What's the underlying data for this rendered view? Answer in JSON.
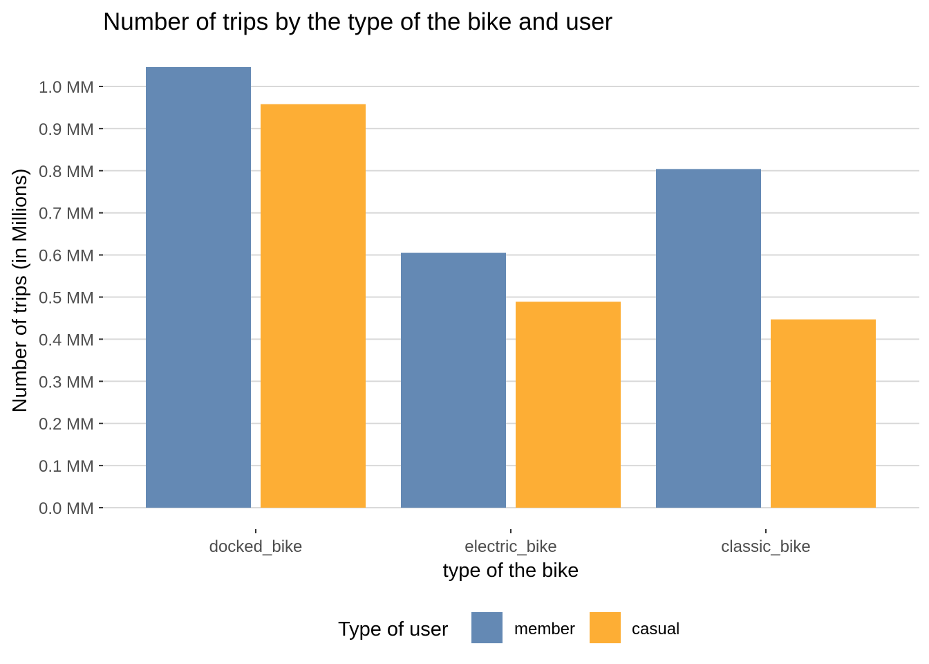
{
  "chart_data": {
    "type": "bar",
    "title": "Number of trips by the type of the bike and user",
    "xlabel": "type of the bike",
    "ylabel": "Number of trips (in Millions)",
    "categories": [
      "docked_bike",
      "electric_bike",
      "classic_bike"
    ],
    "series": [
      {
        "name": "member",
        "color": "#6489b4",
        "values": [
          1.046,
          0.605,
          0.804
        ]
      },
      {
        "name": "casual",
        "color": "#fdae35",
        "values": [
          0.958,
          0.489,
          0.447
        ]
      }
    ],
    "ylim": [
      0,
      1.0
    ],
    "yticks": [
      "0.0 MM",
      "0.1 MM",
      "0.2 MM",
      "0.3 MM",
      "0.4 MM",
      "0.5 MM",
      "0.6 MM",
      "0.7 MM",
      "0.8 MM",
      "0.9 MM",
      "1.0 MM"
    ],
    "ytick_values": [
      0,
      0.1,
      0.2,
      0.3,
      0.4,
      0.5,
      0.6,
      0.7,
      0.8,
      0.9,
      1.0
    ],
    "grid": true,
    "legend": {
      "title": "Type of user",
      "position": "bottom"
    }
  }
}
